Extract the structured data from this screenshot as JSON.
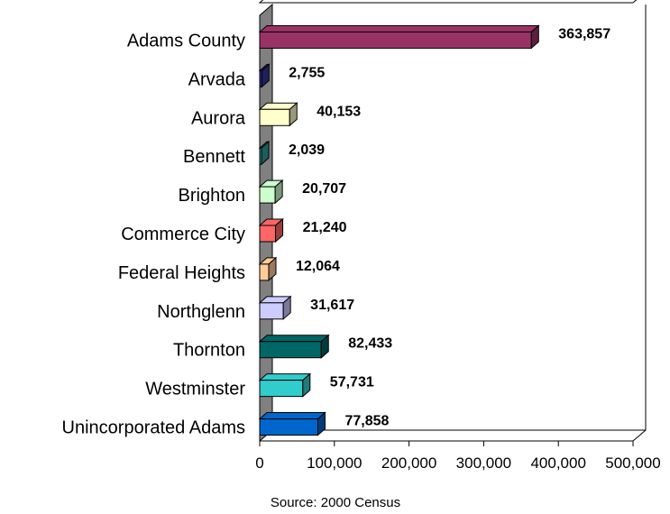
{
  "chart_data": {
    "type": "bar",
    "orientation": "horizontal",
    "three_d": true,
    "categories": [
      "Adams County",
      "Arvada",
      "Aurora",
      "Bennett",
      "Brighton",
      "Commerce City",
      "Federal Heights",
      "Northglenn",
      "Thornton",
      "Westminster",
      "Unincorporated Adams"
    ],
    "values": [
      363857,
      2755,
      40153,
      2039,
      20707,
      21240,
      12064,
      31617,
      82433,
      57731,
      77858
    ],
    "value_labels": [
      "363,857",
      "2,755",
      "40,153",
      "2,039",
      "20,707",
      "21,240",
      "12,064",
      "31,617",
      "82,433",
      "57,731",
      "77,858"
    ],
    "colors": [
      "#993366",
      "#333399",
      "#ffffcc",
      "#339999",
      "#ccffcc",
      "#ff6666",
      "#ffcc99",
      "#ccccff",
      "#006666",
      "#33cccc",
      "#0066cc"
    ],
    "xlim": [
      0,
      500000
    ],
    "xticks": [
      0,
      100000,
      200000,
      300000,
      400000,
      500000
    ],
    "xtick_labels": [
      "0",
      "100,000",
      "200,000",
      "300,000",
      "400,000",
      "500,000"
    ],
    "grid": false,
    "source_note": "Source:  2000 Census"
  }
}
